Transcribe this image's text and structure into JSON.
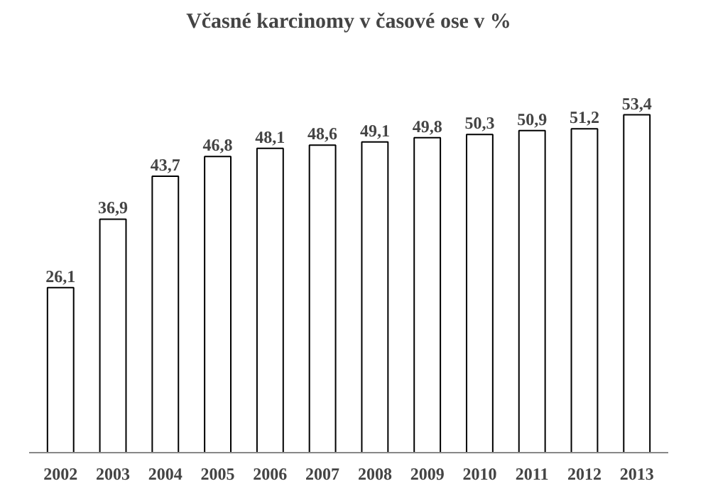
{
  "chart_data": {
    "type": "bar",
    "title": "Včasné karcinomy v časové ose v %",
    "categories": [
      "2002",
      "2003",
      "2004",
      "2005",
      "2006",
      "2007",
      "2008",
      "2009",
      "2010",
      "2011",
      "2012",
      "2013"
    ],
    "values": [
      26.1,
      36.9,
      43.7,
      46.8,
      48.1,
      48.6,
      49.1,
      49.8,
      50.3,
      50.9,
      51.2,
      53.4
    ],
    "value_labels": [
      "26,1",
      "36,9",
      "43,7",
      "46,8",
      "48,1",
      "48,6",
      "49,1",
      "49,8",
      "50,3",
      "50,9",
      "51,2",
      "53,4"
    ],
    "color": "#ffffff"
  }
}
